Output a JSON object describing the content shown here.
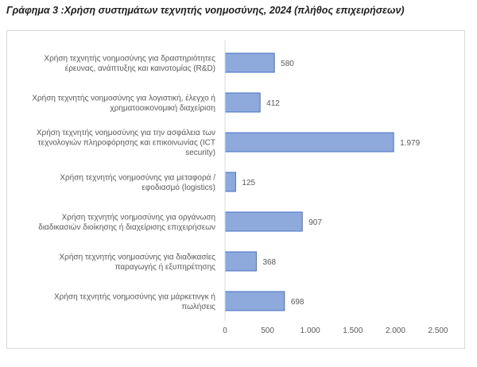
{
  "title": "Γράφημα 3 :Χρήση συστημάτων τεχνητής νοημοσύνης, 2024 (πλήθος επιχειρήσεων)",
  "chart_data": {
    "type": "bar",
    "orientation": "horizontal",
    "categories": [
      [
        "Χρήση τεχνητής νοημοσύνης για δραστηριότητες",
        "έρευνας, ανάπτυξης και καινοτομίας (R&D)"
      ],
      [
        "Χρήση τεχνητής νοημοσύνης για λογιστική, έλεγχο ή",
        "χρηματοοικονομική διαχείριση"
      ],
      [
        "Χρήση τεχνητής νοημοσύνης για την ασφάλεια των",
        "τεχνολογιών πληροφόρησης και επικοινωνίας (ICT",
        "security)"
      ],
      [
        "Χρήση τεχνητής νοημοσύνης για μεταφορά /",
        "εφοδιασμό (logistics)"
      ],
      [
        "Χρήση τεχνητής νοημοσύνης για οργάνωση",
        "διαδικασιών διοίκησης ή διαχείρισης επιχειρήσεων"
      ],
      [
        "Χρήση τεχνητής νοημοσύνης για διαδικασίες",
        "παραγωγής ή εξυπηρέτησης"
      ],
      [
        "Χρήση τεχνητής νοημοσύνης για μάρκετινγκ ή",
        "πωλήσεις"
      ]
    ],
    "values": [
      580,
      412,
      1979,
      125,
      907,
      368,
      698
    ],
    "value_labels": [
      "580",
      "412",
      "1.979",
      "125",
      "907",
      "368",
      "698"
    ],
    "xlim": [
      0,
      2500
    ],
    "ticks": [
      0,
      500,
      1000,
      1500,
      2000,
      2500
    ],
    "tick_labels": [
      "0",
      "500",
      "1.000",
      "1.500",
      "2.000",
      "2.500"
    ],
    "bar_color": "#8ea9db",
    "bar_border": "#4472c4",
    "grid": false
  }
}
